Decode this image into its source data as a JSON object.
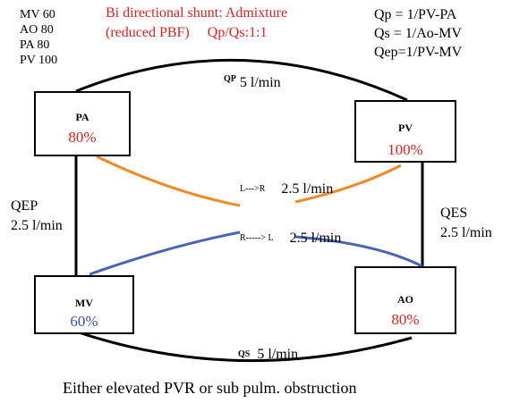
{
  "saturations": [
    "MV 60",
    "AO 80",
    "PA 80",
    "PV 100"
  ],
  "header": {
    "line1": "Bi directional shunt: Admixture",
    "line2_a": "(reduced PBF)",
    "line2_b": "Qp/Qs:1:1"
  },
  "formulas": [
    "Qp = 1/PV-PA",
    "Qs = 1/Ao-MV",
    "Qep=1/PV-MV"
  ],
  "nodes": {
    "pa": {
      "name": "PA",
      "pct": "80%"
    },
    "pv": {
      "name": "PV",
      "pct": "100%"
    },
    "mv": {
      "name": "MV",
      "pct": "60%"
    },
    "ao": {
      "name": "AO",
      "pct": "80%"
    }
  },
  "flows": {
    "qp": {
      "label": "QP",
      "value": "5 l/min"
    },
    "qs": {
      "label": "QS",
      "value": "5 l/min"
    },
    "qep": {
      "label": "QEP",
      "value": "2.5 l/min"
    },
    "qes": {
      "label": "QES",
      "value": "2.5 l/min"
    },
    "lr": {
      "label": "L--->R",
      "value": "2.5 l/min"
    },
    "rl": {
      "label": "R-----> L",
      "value": "2.5 l/min"
    }
  },
  "footer": "Either elevated PVR or sub pulm. obstruction",
  "colors": {
    "red": "#e02020",
    "blue": "#3a4fb0",
    "orange": "#f08a24",
    "line_blue": "#4a63b8"
  }
}
